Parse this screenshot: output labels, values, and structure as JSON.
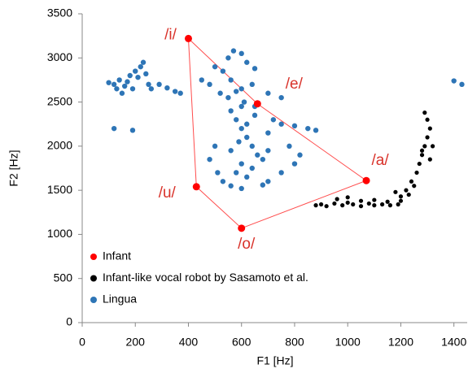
{
  "chart_data": {
    "type": "scatter",
    "xlabel": "F1 [Hz]",
    "ylabel": "F2 [Hz]",
    "xlim": [
      0,
      1450
    ],
    "xticks": [
      0,
      200,
      400,
      600,
      800,
      1000,
      1200,
      1400
    ],
    "ylim": [
      0,
      3500
    ],
    "yticks": [
      0,
      500,
      1000,
      1500,
      2000,
      2500,
      3000,
      3500
    ],
    "grid": false,
    "legend": "lower left",
    "annotations": [
      "/i/",
      "/e/",
      "/a/",
      "/o/",
      "/u/"
    ],
    "series": [
      {
        "name": "Infant",
        "color": "#ff0000",
        "x": [
          400,
          660,
          1070,
          600,
          430
        ],
        "values": [
          3220,
          2480,
          1610,
          1070,
          1540
        ]
      },
      {
        "name": "Infant-like vocal robot by Sasamoto et al.",
        "color": "#000000",
        "x": [
          880,
          900,
          920,
          950,
          980,
          1000,
          1020,
          1050,
          1080,
          1100,
          1130,
          1160,
          1190,
          960,
          1000,
          1050,
          1100,
          1150,
          1200,
          1220,
          1240,
          1260,
          1270,
          1280,
          1290,
          1300,
          1310,
          1300,
          1290,
          1320,
          1280,
          1310,
          1230,
          1250,
          1200,
          1180
        ],
        "values": [
          1330,
          1340,
          1320,
          1350,
          1330,
          1360,
          1340,
          1320,
          1350,
          1330,
          1340,
          1330,
          1340,
          1400,
          1420,
          1380,
          1390,
          1370,
          1380,
          1500,
          1600,
          1700,
          1800,
          1900,
          2000,
          2100,
          2200,
          2300,
          2380,
          2000,
          1950,
          1850,
          1450,
          1550,
          1430,
          1480
        ]
      },
      {
        "name": "Lingua",
        "color": "#2e75b6",
        "x": [
          100,
          120,
          140,
          160,
          180,
          200,
          210,
          220,
          230,
          240,
          190,
          150,
          250,
          130,
          170,
          120,
          190,
          290,
          320,
          350,
          370,
          260,
          500,
          550,
          570,
          600,
          620,
          650,
          530,
          450,
          480,
          520,
          600,
          640,
          700,
          750,
          1400,
          1430,
          1490,
          560,
          580,
          600,
          620,
          640,
          660,
          600,
          580,
          620,
          700,
          750,
          800,
          820,
          780,
          700,
          750,
          850,
          880,
          800,
          720,
          650,
          600,
          550,
          500,
          480,
          510,
          530,
          560,
          600,
          680,
          640,
          680,
          700,
          620,
          590,
          560,
          650,
          610,
          560,
          580
        ],
        "values": [
          2720,
          2700,
          2750,
          2680,
          2800,
          2850,
          2780,
          2900,
          2950,
          2820,
          2650,
          2600,
          2700,
          2650,
          2730,
          2200,
          2180,
          2700,
          2660,
          2620,
          2600,
          2650,
          2900,
          3000,
          3080,
          3050,
          2950,
          2880,
          2850,
          2750,
          2700,
          2600,
          2650,
          2700,
          2600,
          2550,
          2740,
          2700,
          2720,
          2400,
          2300,
          2200,
          2100,
          2000,
          1900,
          1800,
          1700,
          1650,
          1600,
          1700,
          1800,
          1900,
          2000,
          2150,
          2250,
          2200,
          2180,
          2230,
          2300,
          2350,
          2450,
          2550,
          2000,
          1850,
          1700,
          1600,
          1550,
          1520,
          1560,
          1750,
          1850,
          1950,
          2250,
          2050,
          1950,
          2450,
          2500,
          2750,
          2620
        ]
      }
    ]
  }
}
